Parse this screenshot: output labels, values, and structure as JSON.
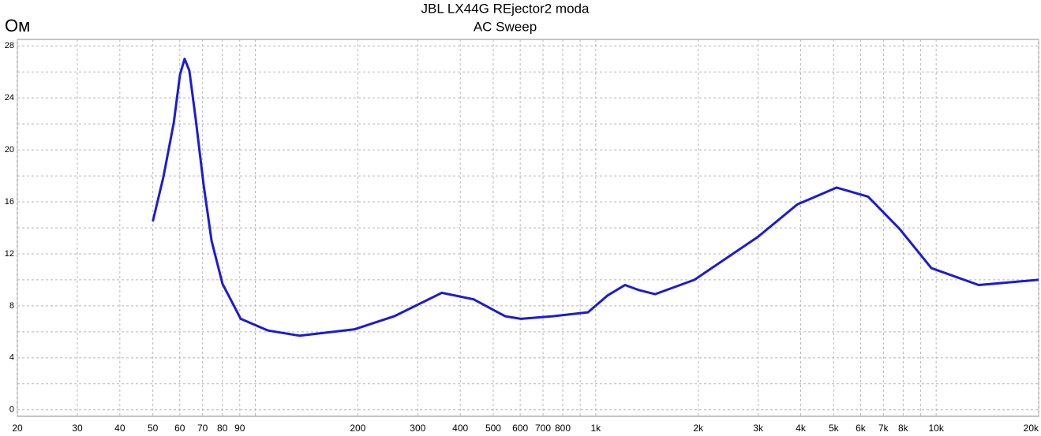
{
  "chart_data": {
    "type": "line",
    "title": "JBL LX44G REjector2 moda",
    "subtitle": "AC Sweep",
    "y_label": "Ом",
    "xscale": "log",
    "grid": true,
    "color": "#1b1bd6",
    "x": [
      50,
      53.7,
      57.6,
      60.1,
      62,
      64,
      66.8,
      70.5,
      74.4,
      80.1,
      90.6,
      109,
      135,
      196,
      256,
      353,
      438,
      542,
      603,
      747,
      949,
      1084,
      1219,
      1343,
      1494,
      1950,
      2993,
      3909,
      5103,
      6310,
      7818,
      9682,
      13340,
      20000
    ],
    "values": [
      14.5,
      17.9,
      22.1,
      25.8,
      27.0,
      26.1,
      22.4,
      17.3,
      13.0,
      9.7,
      7.0,
      6.1,
      5.7,
      6.2,
      7.2,
      9.0,
      8.5,
      7.2,
      7.0,
      7.2,
      7.5,
      8.8,
      9.6,
      9.2,
      8.9,
      10.0,
      13.3,
      15.8,
      17.1,
      16.4,
      13.9,
      10.9,
      9.6,
      10.0
    ],
    "xlim": [
      20,
      20000
    ],
    "ylim": [
      -0.5,
      28.5
    ],
    "xticks": [
      20,
      30,
      40,
      50,
      60,
      70,
      80,
      90,
      200,
      300,
      400,
      500,
      600,
      700,
      800,
      {
        "value": 1000,
        "label": "1k"
      },
      {
        "value": 2000,
        "label": "2k"
      },
      {
        "value": 3000,
        "label": "3k"
      },
      {
        "value": 4000,
        "label": "4k"
      },
      {
        "value": 5000,
        "label": "5k"
      },
      {
        "value": 6000,
        "label": "6k"
      },
      {
        "value": 7000,
        "label": "7k"
      },
      {
        "value": 8000,
        "label": "8k"
      },
      {
        "value": 10000,
        "label": "10k"
      },
      {
        "value": 20000,
        "label": "20k"
      }
    ],
    "xgrid_unlabeled": [
      100,
      900,
      9000
    ],
    "yticks": [
      0,
      4,
      8,
      12,
      16,
      20,
      24,
      28
    ],
    "ygrid_minor": [
      2,
      6,
      10,
      14,
      18,
      22,
      26
    ]
  }
}
